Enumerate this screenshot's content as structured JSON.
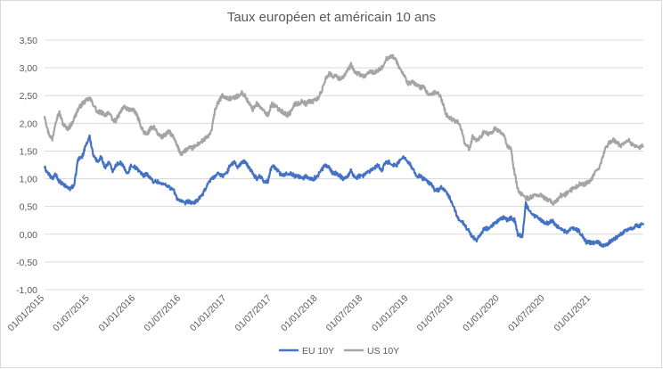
{
  "chart_data": {
    "type": "line",
    "title": "Taux européen  et américain 10 ans",
    "xlabel": "",
    "ylabel": "",
    "ylim": [
      -1.0,
      3.5
    ],
    "ytick_step": 0.5,
    "ytick_labels": [
      "-1,00",
      "-0,50",
      "0,00",
      "0,50",
      "1,00",
      "1,50",
      "2,00",
      "2,50",
      "3,00",
      "3,50"
    ],
    "xlim": [
      "2015-01-01",
      "2021-07-31"
    ],
    "xtick_labels": [
      "01/01/2015",
      "01/07/2015",
      "01/01/2016",
      "01/07/2016",
      "01/01/2017",
      "01/07/2017",
      "01/01/2018",
      "01/07/2018",
      "01/01/2019",
      "01/07/2019",
      "01/01/2020",
      "01/07/2020",
      "01/01/2021"
    ],
    "xtick_dates": [
      "2015-01-01",
      "2015-07-01",
      "2016-01-01",
      "2016-07-01",
      "2017-01-01",
      "2017-07-01",
      "2018-01-01",
      "2018-07-01",
      "2019-01-01",
      "2019-07-01",
      "2020-01-01",
      "2020-07-01",
      "2021-01-01"
    ],
    "grid": "horizontal",
    "legend": "bottom",
    "series": [
      {
        "name": "EU 10Y",
        "color": "#4472c4",
        "x": [
          "2015-01-01",
          "2015-01-15",
          "2015-02-01",
          "2015-02-15",
          "2015-03-01",
          "2015-03-15",
          "2015-04-01",
          "2015-04-15",
          "2015-05-01",
          "2015-05-15",
          "2015-06-01",
          "2015-06-15",
          "2015-07-01",
          "2015-07-15",
          "2015-08-01",
          "2015-08-15",
          "2015-09-01",
          "2015-09-15",
          "2015-10-01",
          "2015-10-15",
          "2015-11-01",
          "2015-11-15",
          "2015-12-01",
          "2015-12-15",
          "2016-01-01",
          "2016-01-15",
          "2016-02-01",
          "2016-02-15",
          "2016-03-01",
          "2016-03-15",
          "2016-04-01",
          "2016-04-15",
          "2016-05-01",
          "2016-05-15",
          "2016-06-01",
          "2016-06-15",
          "2016-07-01",
          "2016-07-15",
          "2016-08-01",
          "2016-08-15",
          "2016-09-01",
          "2016-09-15",
          "2016-10-01",
          "2016-10-15",
          "2016-11-01",
          "2016-11-15",
          "2016-12-01",
          "2016-12-15",
          "2017-01-01",
          "2017-01-15",
          "2017-02-01",
          "2017-02-15",
          "2017-03-01",
          "2017-03-15",
          "2017-04-01",
          "2017-04-15",
          "2017-05-01",
          "2017-05-15",
          "2017-06-01",
          "2017-06-15",
          "2017-07-01",
          "2017-07-15",
          "2017-08-01",
          "2017-08-15",
          "2017-09-01",
          "2017-09-15",
          "2017-10-01",
          "2017-10-15",
          "2017-11-01",
          "2017-11-15",
          "2017-12-01",
          "2017-12-15",
          "2018-01-01",
          "2018-01-15",
          "2018-02-01",
          "2018-02-15",
          "2018-03-01",
          "2018-03-15",
          "2018-04-01",
          "2018-04-15",
          "2018-05-01",
          "2018-05-15",
          "2018-06-01",
          "2018-06-15",
          "2018-07-01",
          "2018-07-15",
          "2018-08-01",
          "2018-08-15",
          "2018-09-01",
          "2018-09-15",
          "2018-10-01",
          "2018-10-15",
          "2018-11-01",
          "2018-11-15",
          "2018-12-01",
          "2018-12-15",
          "2019-01-01",
          "2019-01-15",
          "2019-02-01",
          "2019-02-15",
          "2019-03-01",
          "2019-03-15",
          "2019-04-01",
          "2019-04-15",
          "2019-05-01",
          "2019-05-15",
          "2019-06-01",
          "2019-06-15",
          "2019-07-01",
          "2019-07-15",
          "2019-08-01",
          "2019-08-15",
          "2019-09-01",
          "2019-09-15",
          "2019-10-01",
          "2019-10-15",
          "2019-11-01",
          "2019-11-15",
          "2019-12-01",
          "2019-12-15",
          "2020-01-01",
          "2020-01-15",
          "2020-02-01",
          "2020-02-15",
          "2020-03-01",
          "2020-03-15",
          "2020-04-01",
          "2020-04-15",
          "2020-05-01",
          "2020-05-15",
          "2020-06-01",
          "2020-06-15",
          "2020-07-01",
          "2020-07-15",
          "2020-08-01",
          "2020-08-15",
          "2020-09-01",
          "2020-09-15",
          "2020-10-01",
          "2020-10-15",
          "2020-11-01",
          "2020-11-15",
          "2020-12-01",
          "2020-12-15",
          "2021-01-01",
          "2021-01-15",
          "2021-02-01",
          "2021-02-15",
          "2021-03-01",
          "2021-03-15",
          "2021-04-01",
          "2021-04-15",
          "2021-05-01",
          "2021-05-15",
          "2021-06-01",
          "2021-06-15",
          "2021-07-01",
          "2021-07-15",
          "2021-07-31"
        ],
        "values": [
          1.2,
          1.1,
          1.0,
          1.08,
          0.95,
          0.9,
          0.85,
          0.82,
          0.9,
          1.35,
          1.4,
          1.6,
          1.75,
          1.45,
          1.3,
          1.4,
          1.2,
          1.3,
          1.15,
          1.25,
          1.3,
          1.2,
          1.1,
          1.25,
          1.2,
          1.15,
          1.05,
          1.1,
          1.0,
          0.95,
          0.95,
          0.9,
          0.9,
          0.85,
          0.8,
          0.65,
          0.6,
          0.55,
          0.6,
          0.55,
          0.6,
          0.65,
          0.75,
          0.9,
          1.0,
          1.05,
          1.1,
          1.05,
          1.1,
          1.25,
          1.3,
          1.2,
          1.3,
          1.3,
          1.2,
          1.1,
          1.0,
          1.05,
          0.95,
          0.95,
          1.25,
          1.2,
          1.1,
          1.05,
          1.1,
          1.1,
          1.05,
          1.05,
          1.0,
          1.05,
          1.0,
          1.0,
          1.05,
          1.15,
          1.25,
          1.2,
          1.1,
          1.1,
          1.05,
          1.0,
          1.05,
          1.15,
          1.0,
          1.05,
          1.05,
          1.1,
          1.15,
          1.2,
          1.25,
          1.15,
          1.3,
          1.3,
          1.25,
          1.25,
          1.35,
          1.4,
          1.3,
          1.2,
          1.05,
          1.05,
          1.0,
          0.95,
          0.9,
          0.8,
          0.8,
          0.85,
          0.75,
          0.65,
          0.5,
          0.3,
          0.25,
          0.15,
          0.05,
          -0.05,
          -0.1,
          0.0,
          0.1,
          0.1,
          0.15,
          0.2,
          0.25,
          0.3,
          0.25,
          0.3,
          0.25,
          0.0,
          -0.05,
          0.55,
          0.4,
          0.35,
          0.3,
          0.25,
          0.2,
          0.2,
          0.25,
          0.15,
          0.1,
          0.05,
          0.05,
          0.1,
          0.1,
          0.05,
          -0.05,
          -0.15,
          -0.15,
          -0.15,
          -0.15,
          -0.2,
          -0.2,
          -0.15,
          -0.1,
          -0.05,
          0.0,
          0.05,
          0.1,
          0.1,
          0.15,
          0.15,
          0.2
        ],
        "noise": 0.035
      },
      {
        "name": "US 10Y",
        "color": "#a5a5a5",
        "x": [
          "2015-01-01",
          "2015-01-15",
          "2015-02-01",
          "2015-02-15",
          "2015-03-01",
          "2015-03-15",
          "2015-04-01",
          "2015-04-15",
          "2015-05-01",
          "2015-05-15",
          "2015-06-01",
          "2015-06-15",
          "2015-07-01",
          "2015-07-15",
          "2015-08-01",
          "2015-08-15",
          "2015-09-01",
          "2015-09-15",
          "2015-10-01",
          "2015-10-15",
          "2015-11-01",
          "2015-11-15",
          "2015-12-01",
          "2015-12-15",
          "2016-01-01",
          "2016-01-15",
          "2016-02-01",
          "2016-02-15",
          "2016-03-01",
          "2016-03-15",
          "2016-04-01",
          "2016-04-15",
          "2016-05-01",
          "2016-05-15",
          "2016-06-01",
          "2016-06-15",
          "2016-07-01",
          "2016-07-15",
          "2016-08-01",
          "2016-08-15",
          "2016-09-01",
          "2016-09-15",
          "2016-10-01",
          "2016-10-15",
          "2016-11-01",
          "2016-11-15",
          "2016-12-01",
          "2016-12-15",
          "2017-01-01",
          "2017-01-15",
          "2017-02-01",
          "2017-02-15",
          "2017-03-01",
          "2017-03-15",
          "2017-04-01",
          "2017-04-15",
          "2017-05-01",
          "2017-05-15",
          "2017-06-01",
          "2017-06-15",
          "2017-07-01",
          "2017-07-15",
          "2017-08-01",
          "2017-08-15",
          "2017-09-01",
          "2017-09-15",
          "2017-10-01",
          "2017-10-15",
          "2017-11-01",
          "2017-11-15",
          "2017-12-01",
          "2017-12-15",
          "2018-01-01",
          "2018-01-15",
          "2018-02-01",
          "2018-02-15",
          "2018-03-01",
          "2018-03-15",
          "2018-04-01",
          "2018-04-15",
          "2018-05-01",
          "2018-05-15",
          "2018-06-01",
          "2018-06-15",
          "2018-07-01",
          "2018-07-15",
          "2018-08-01",
          "2018-08-15",
          "2018-09-01",
          "2018-09-15",
          "2018-10-01",
          "2018-10-15",
          "2018-11-01",
          "2018-11-15",
          "2018-12-01",
          "2018-12-15",
          "2019-01-01",
          "2019-01-15",
          "2019-02-01",
          "2019-02-15",
          "2019-03-01",
          "2019-03-15",
          "2019-04-01",
          "2019-04-15",
          "2019-05-01",
          "2019-05-15",
          "2019-06-01",
          "2019-06-15",
          "2019-07-01",
          "2019-07-15",
          "2019-08-01",
          "2019-08-15",
          "2019-09-01",
          "2019-09-15",
          "2019-10-01",
          "2019-10-15",
          "2019-11-01",
          "2019-11-15",
          "2019-12-01",
          "2019-12-15",
          "2020-01-01",
          "2020-01-15",
          "2020-02-01",
          "2020-02-15",
          "2020-03-01",
          "2020-03-15",
          "2020-04-01",
          "2020-04-15",
          "2020-05-01",
          "2020-05-15",
          "2020-06-01",
          "2020-06-15",
          "2020-07-01",
          "2020-07-15",
          "2020-08-01",
          "2020-08-15",
          "2020-09-01",
          "2020-09-15",
          "2020-10-01",
          "2020-10-15",
          "2020-11-01",
          "2020-11-15",
          "2020-12-01",
          "2020-12-15",
          "2021-01-01",
          "2021-01-15",
          "2021-02-01",
          "2021-02-15",
          "2021-03-01",
          "2021-03-15",
          "2021-04-01",
          "2021-04-15",
          "2021-05-01",
          "2021-05-15",
          "2021-06-01",
          "2021-06-15",
          "2021-07-01",
          "2021-07-15",
          "2021-07-31"
        ],
        "values": [
          2.15,
          1.85,
          1.7,
          2.05,
          2.2,
          2.0,
          1.9,
          1.95,
          2.1,
          2.25,
          2.35,
          2.4,
          2.45,
          2.35,
          2.2,
          2.2,
          2.15,
          2.2,
          2.05,
          2.05,
          2.2,
          2.3,
          2.25,
          2.25,
          2.2,
          2.05,
          1.85,
          1.8,
          1.9,
          1.95,
          1.8,
          1.75,
          1.8,
          1.85,
          1.75,
          1.6,
          1.45,
          1.5,
          1.55,
          1.55,
          1.6,
          1.65,
          1.7,
          1.75,
          1.85,
          2.25,
          2.4,
          2.5,
          2.45,
          2.45,
          2.45,
          2.5,
          2.55,
          2.5,
          2.35,
          2.25,
          2.35,
          2.3,
          2.2,
          2.15,
          2.35,
          2.3,
          2.25,
          2.2,
          2.15,
          2.2,
          2.35,
          2.35,
          2.4,
          2.35,
          2.4,
          2.4,
          2.45,
          2.55,
          2.8,
          2.9,
          2.85,
          2.85,
          2.8,
          2.85,
          2.95,
          3.05,
          2.9,
          2.9,
          2.85,
          2.85,
          2.95,
          2.9,
          2.95,
          3.0,
          3.15,
          3.2,
          3.2,
          3.1,
          2.95,
          2.85,
          2.7,
          2.75,
          2.7,
          2.65,
          2.65,
          2.55,
          2.5,
          2.55,
          2.55,
          2.4,
          2.15,
          2.1,
          2.05,
          2.05,
          1.9,
          1.6,
          1.55,
          1.75,
          1.7,
          1.75,
          1.85,
          1.8,
          1.85,
          1.9,
          1.85,
          1.8,
          1.6,
          1.55,
          1.1,
          0.8,
          0.7,
          0.65,
          0.65,
          0.7,
          0.7,
          0.7,
          0.65,
          0.62,
          0.55,
          0.6,
          0.7,
          0.7,
          0.75,
          0.8,
          0.85,
          0.9,
          0.9,
          0.92,
          0.95,
          1.1,
          1.15,
          1.35,
          1.55,
          1.65,
          1.7,
          1.65,
          1.6,
          1.65,
          1.7,
          1.62,
          1.6,
          1.55,
          1.6
        ],
        "noise": 0.04
      }
    ]
  }
}
